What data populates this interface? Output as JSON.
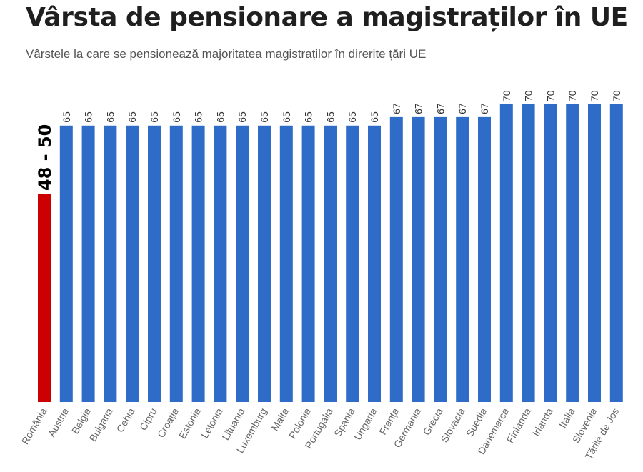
{
  "title": "Vârsta de pensionare a magistraților în UE",
  "subtitle": "Vârstele la care se pensionează majoritatea magistraților în direrite țări UE",
  "colors": {
    "bar": "#2f6cc7",
    "highlight": "#cc0000",
    "label": "#333333",
    "tick": "#666666",
    "highlight_label": "#000000"
  },
  "chart_data": {
    "type": "bar",
    "title": "Vârsta de pensionare a magistraților în UE",
    "subtitle": "Vârstele la care se pensionează majoritatea magistraților în direrite țări UE",
    "xlabel": "",
    "ylabel": "",
    "ylim": [
      0,
      70
    ],
    "grid": false,
    "categories": [
      "România",
      "Austria",
      "Belgia",
      "Bulgaria",
      "Cehia",
      "Cipru",
      "Croația",
      "Estonia",
      "Letonia",
      "Lituania",
      "Luxemburg",
      "Malta",
      "Polonia",
      "Portugalia",
      "Spania",
      "Ungaria",
      "Franța",
      "Germania",
      "Grecia",
      "Slovacia",
      "Suedia",
      "Danemarca",
      "Finlanda",
      "Irlanda",
      "Italia",
      "Slovenia",
      "Țările de Jos"
    ],
    "values": [
      49,
      65,
      65,
      65,
      65,
      65,
      65,
      65,
      65,
      65,
      65,
      65,
      65,
      65,
      65,
      65,
      67,
      67,
      67,
      67,
      67,
      70,
      70,
      70,
      70,
      70,
      70
    ],
    "data_labels": [
      "48 - 50",
      "65",
      "65",
      "65",
      "65",
      "65",
      "65",
      "65",
      "65",
      "65",
      "65",
      "65",
      "65",
      "65",
      "65",
      "65",
      "67",
      "67",
      "67",
      "67",
      "67",
      "70",
      "70",
      "70",
      "70",
      "70",
      "70"
    ],
    "highlight_index": 0
  }
}
